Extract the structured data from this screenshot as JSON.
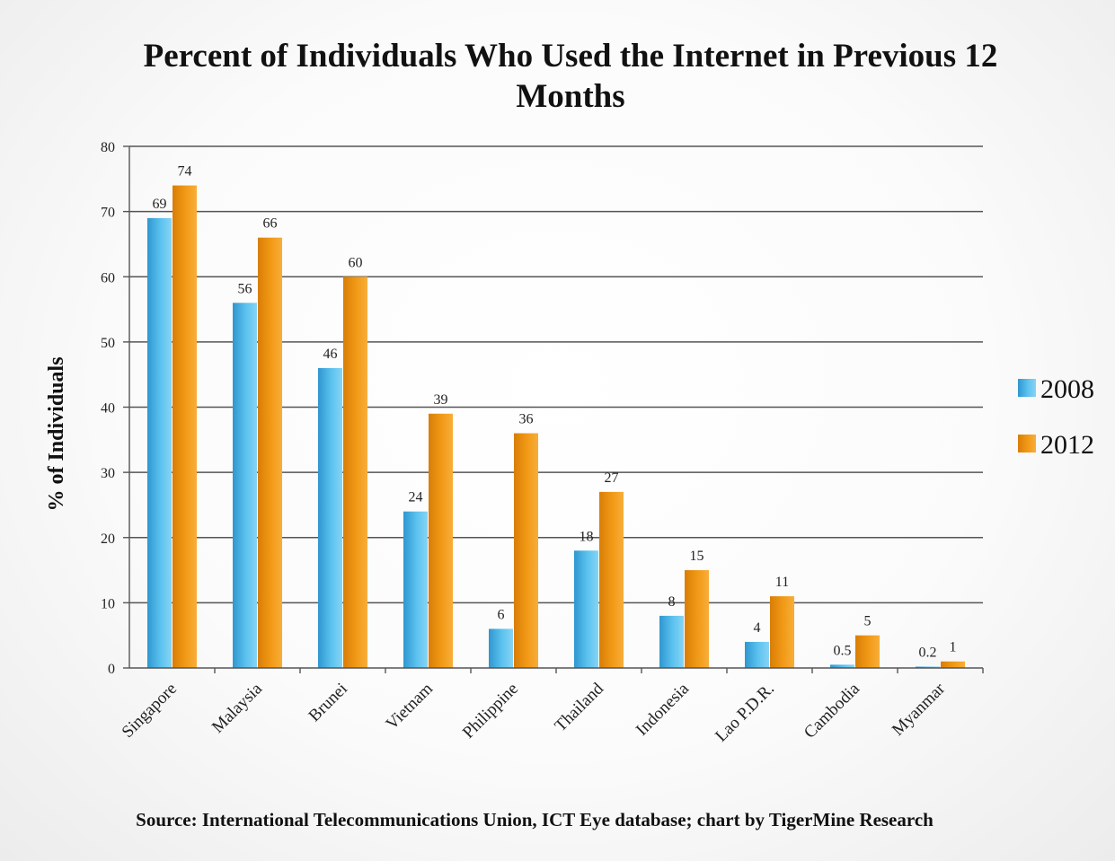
{
  "chart_data": {
    "type": "bar",
    "title": "Percent of Individuals Who Used the Internet in Previous 12 Months",
    "ylabel": "% of Individuals",
    "xlabel": "",
    "ylim": [
      0,
      80
    ],
    "yticks": [
      0,
      10,
      20,
      30,
      40,
      50,
      60,
      70,
      80
    ],
    "grid": true,
    "legend_position": "right",
    "categories": [
      "Singapore",
      "Malaysia",
      "Brunei",
      "Vietnam",
      "Philippine",
      "Thailand",
      "Indonesia",
      "Lao P.D.R.",
      "Cambodia",
      "Myanmar"
    ],
    "series": [
      {
        "name": "2008",
        "color": "#4fb3e6",
        "values": [
          69,
          56,
          46,
          24,
          6,
          18,
          8,
          4,
          0.5,
          0.2
        ],
        "labels": [
          "69",
          "56",
          "46",
          "24",
          "6",
          "18",
          "8",
          "4",
          "0.5",
          "0.2"
        ]
      },
      {
        "name": "2012",
        "color": "#ef9410",
        "values": [
          74,
          66,
          60,
          39,
          36,
          27,
          15,
          11,
          5,
          1
        ],
        "labels": [
          "74",
          "66",
          "60",
          "39",
          "36",
          "27",
          "15",
          "11",
          "5",
          "1"
        ]
      }
    ],
    "source": "Source: International Telecommunications Union, ICT Eye database; chart by TigerMine Research"
  }
}
